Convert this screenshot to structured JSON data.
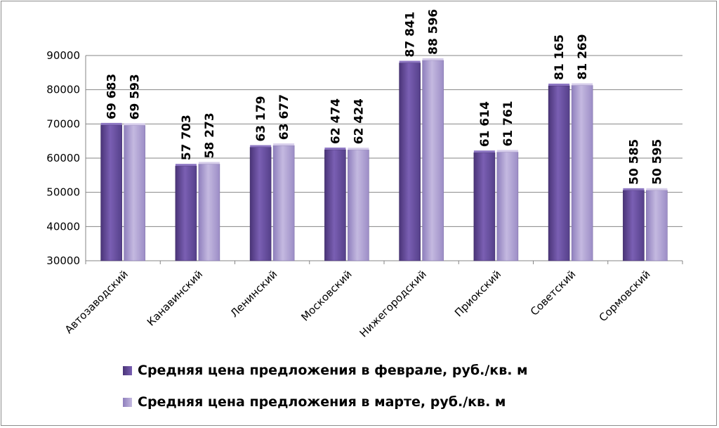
{
  "chart_data": {
    "type": "bar",
    "categories": [
      "Автозаводский",
      "Канавинский",
      "Ленинский",
      "Московский",
      "Нижегородский",
      "Приокский",
      "Советский",
      "Сормовский"
    ],
    "series": [
      {
        "name": "Средняя цена предложения в феврале, руб./кв. м",
        "values": [
          69683,
          57703,
          63179,
          62474,
          87841,
          61614,
          81165,
          50585
        ],
        "labels": [
          "69 683",
          "57 703",
          "63 179",
          "62 474",
          "87 841",
          "61 614",
          "81 165",
          "50 585"
        ],
        "color": "#6a4fa1"
      },
      {
        "name": "Средняя цена предложения в марте, руб./кв. м",
        "values": [
          69593,
          58273,
          63677,
          62424,
          88596,
          61761,
          81269,
          50595
        ],
        "labels": [
          "69 593",
          "58 273",
          "63 677",
          "62 424",
          "88 596",
          "61 761",
          "81 269",
          "50 595"
        ],
        "color": "#ab9dcf"
      }
    ],
    "ylim": [
      30000,
      90000
    ],
    "yticks": [
      "30000",
      "40000",
      "50000",
      "60000",
      "70000",
      "80000",
      "90000"
    ],
    "grid": true,
    "legend_position": "bottom"
  }
}
